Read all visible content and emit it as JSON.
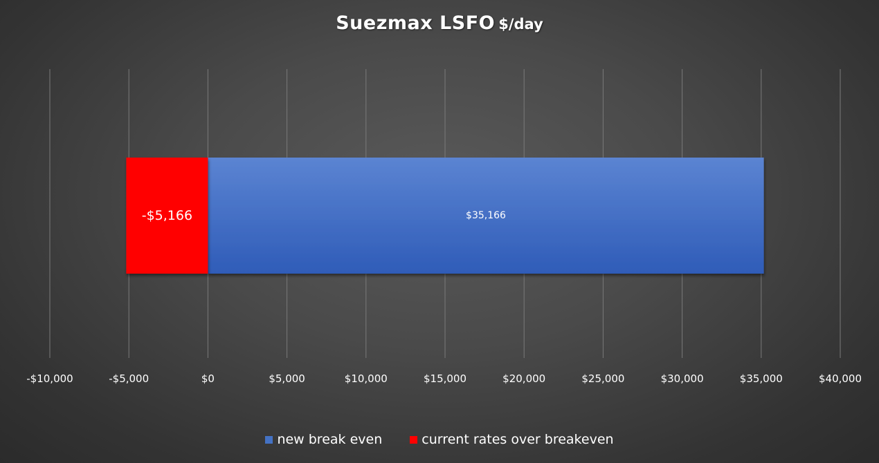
{
  "chart_data": {
    "type": "bar",
    "orientation": "horizontal",
    "stacked": true,
    "title": "Suezmax LSFO",
    "title_unit": "$/day",
    "xlim": [
      -10000,
      40000
    ],
    "x_ticks": [
      -10000,
      -5000,
      0,
      5000,
      10000,
      15000,
      20000,
      25000,
      30000,
      35000,
      40000
    ],
    "x_tick_labels": [
      "-$10,000",
      "-$5,000",
      "$0",
      "$5,000",
      "$10,000",
      "$15,000",
      "$20,000",
      "$25,000",
      "$30,000",
      "$35,000",
      "$40,000"
    ],
    "grid": "vertical",
    "legend_position": "bottom",
    "series": [
      {
        "name": "new break even",
        "value": 35166,
        "label": "$35,166",
        "color": "#4472C4"
      },
      {
        "name": "current rates over breakeven",
        "value": -5166,
        "label": "-$5,166",
        "color": "#FF0000"
      }
    ]
  }
}
